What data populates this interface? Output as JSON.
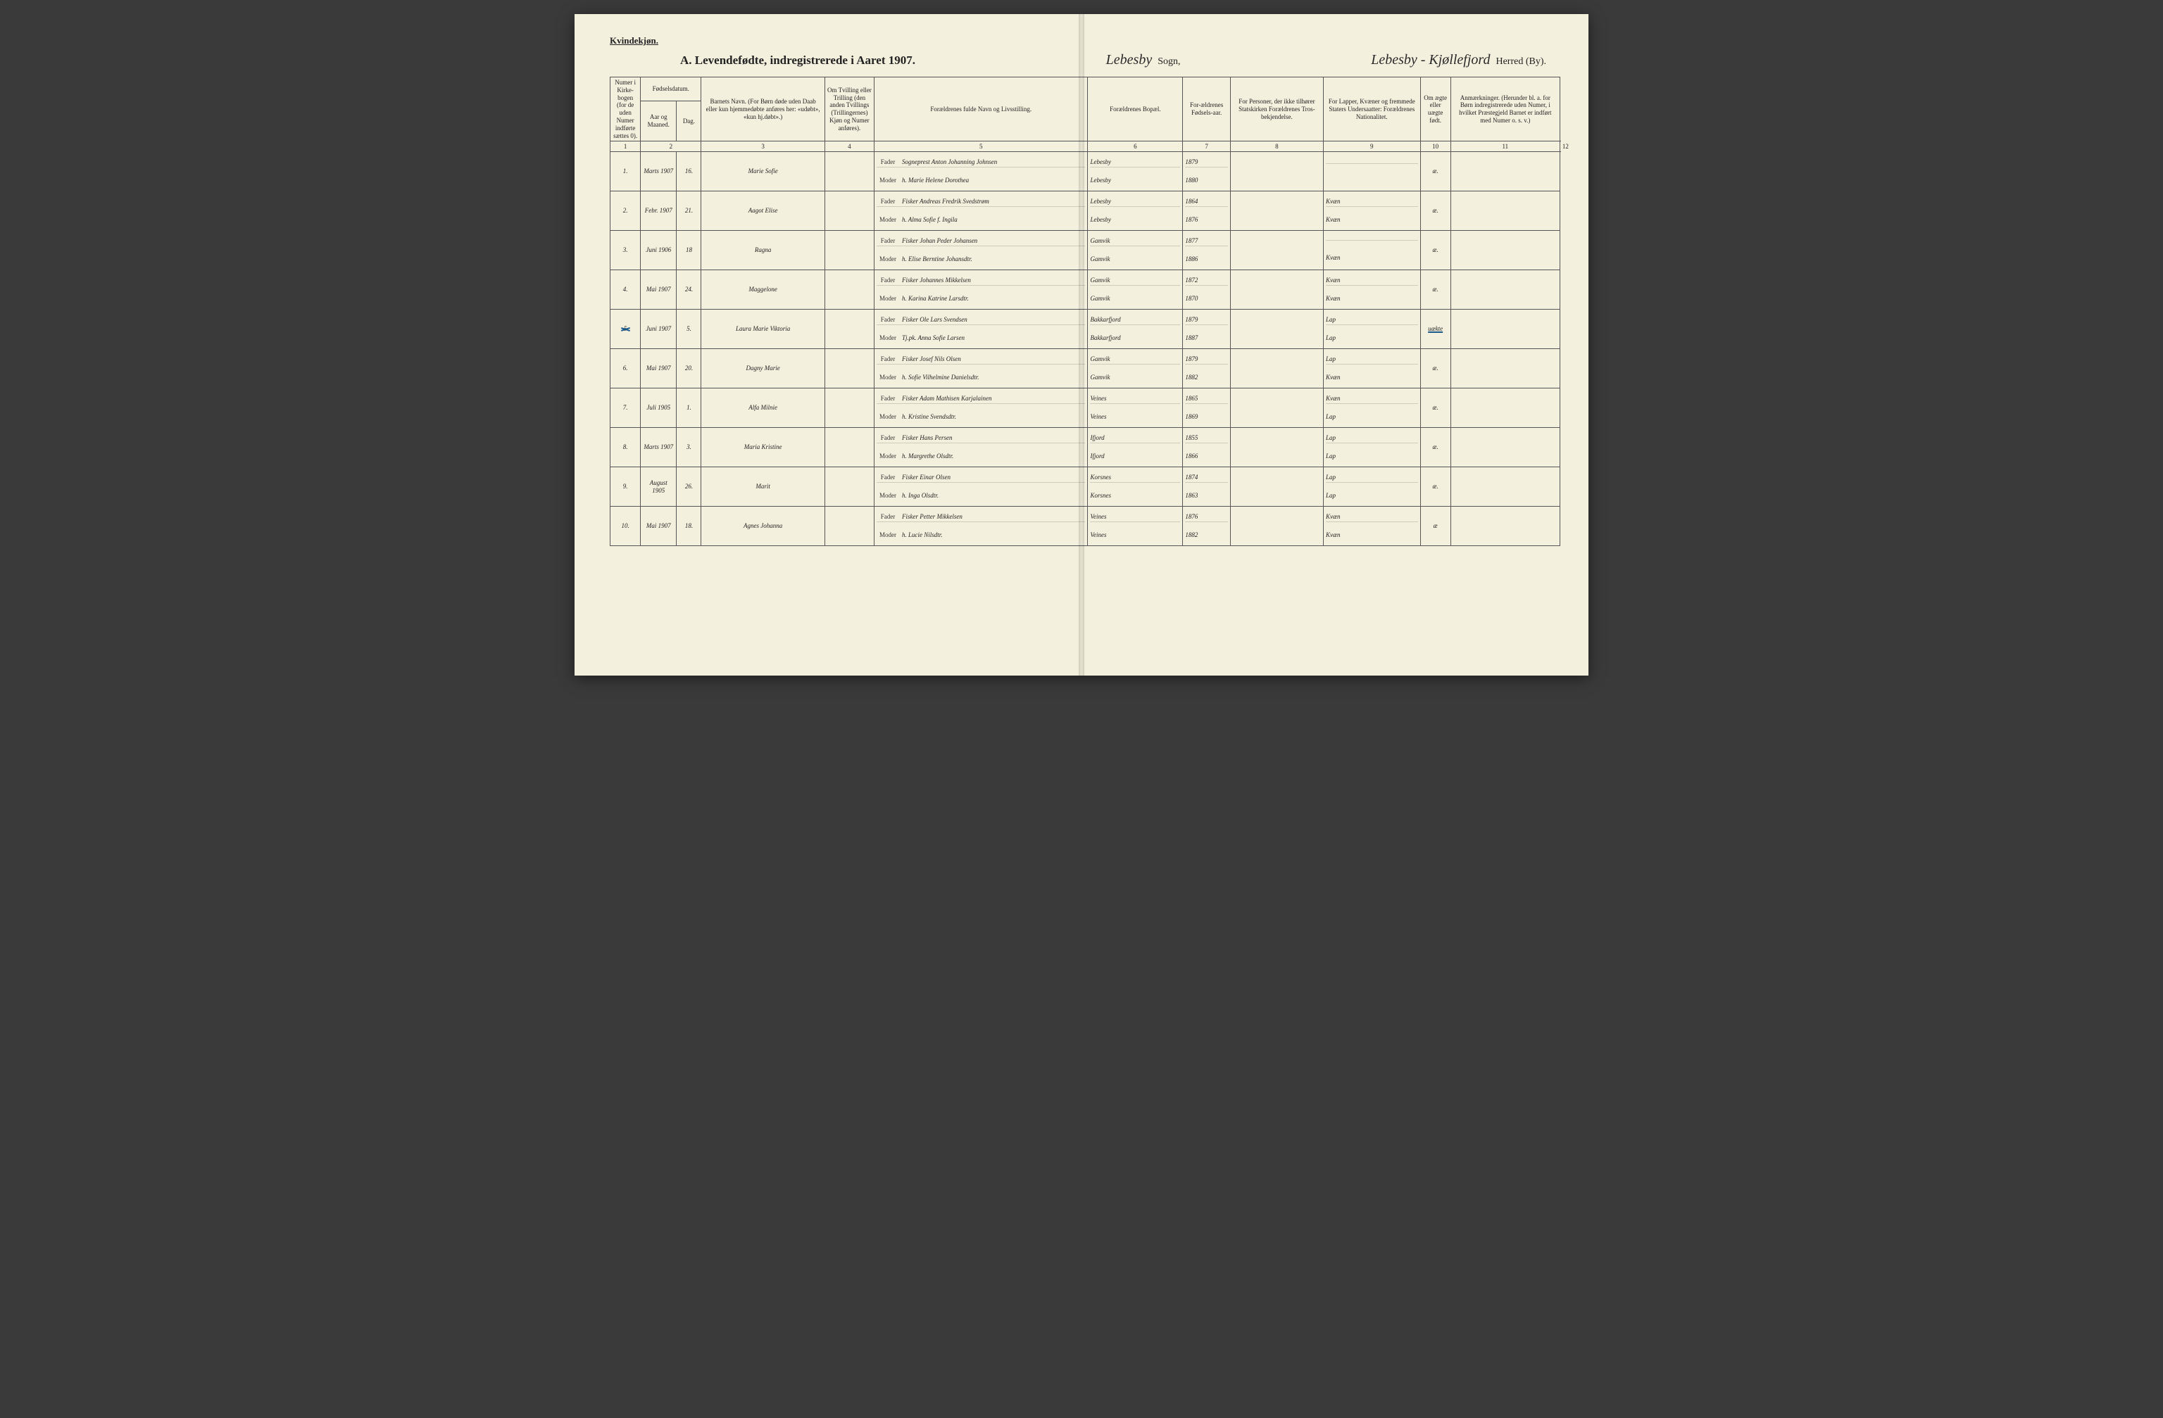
{
  "labels": {
    "gender": "Kvindekjøn.",
    "title": "A.  Levendefødte, indregistrerede i Aaret 1907.",
    "sogn_word": "Sogn,",
    "herred_word": "Herred (By).",
    "sogn_script": "Lebesby",
    "herred_script": "Lebesby - Kjøllefjord",
    "fader": "Fader",
    "moder": "Moder"
  },
  "headers": {
    "c1": "Numer i Kirke-bogen (for de uden Numer indførte sættes 0).",
    "c2_top": "Fødselsdatum.",
    "c2a": "Aar og Maaned.",
    "c2b": "Dag.",
    "c4": "Barnets Navn.\n(For Børn døde uden Daab eller kun hjemmedøbte anføres her: «udøbt», «kun hj.døbt».)",
    "c5": "Om Tvilling eller Trilling (den anden Tvillings (Trillingernes) Kjøn og Numer anføres).",
    "c6": "Forældrenes fulde Navn og Livsstilling.",
    "c7": "Forældrenes Bopæl.",
    "c8": "For-ældrenes Fødsels-aar.",
    "c9": "For Personer, der ikke tilhører Statskirken Forældrenes Tros-bekjendelse.",
    "c10": "For Lapper, Kvæner og fremmede Staters Undersaatter: Forældrenes Nationalitet.",
    "c11": "Om ægte eller uægte født.",
    "c12": "Anmærkninger.\n(Herunder bl. a. for Børn indregistrerede uden Numer, i hvilket Præstegjeld Barnet er indført med Numer o. s. v.)"
  },
  "colnums": [
    "1",
    "2",
    "3",
    "4",
    "5",
    "6",
    "7",
    "8",
    "9",
    "10",
    "11",
    "12"
  ],
  "rows": [
    {
      "n": "1.",
      "ym": "Marts 1907",
      "d": "16.",
      "name": "Marie Sofie",
      "fader": "Sogneprest Anton Johanning Johnsen",
      "moder": "h. Marie Helene Dorothea",
      "bopF": "Lebesby",
      "bopM": "Lebesby",
      "yF": "1879",
      "yM": "1880",
      "natF": "",
      "natM": "",
      "leg": "æ."
    },
    {
      "n": "2.",
      "ym": "Febr. 1907",
      "d": "21.",
      "name": "Aagot Elise",
      "fader": "Fisker Andreas Fredrik Svedstrøm",
      "moder": "h. Alma Sofie f. Ingila",
      "bopF": "Lebesby",
      "bopM": "Lebesby",
      "yF": "1864",
      "yM": "1876",
      "natF": "Kvæn",
      "natM": "Kvæn",
      "leg": "æ."
    },
    {
      "n": "3.",
      "ym": "Juni 1906",
      "d": "18",
      "name": "Ragna",
      "fader": "Fisker Johan Peder Johansen",
      "moder": "h. Elise Berntine Johansdtr.",
      "bopF": "Gamvik",
      "bopM": "Gamvik",
      "yF": "1877",
      "yM": "1886",
      "natF": "",
      "natM": "Kvæn",
      "leg": "æ."
    },
    {
      "n": "4.",
      "ym": "Mai 1907",
      "d": "24.",
      "name": "Maggelone",
      "fader": "Fisker Johannes Mikkelsen",
      "moder": "h. Karina Katrine Larsdtr.",
      "bopF": "Gamvik",
      "bopM": "Gamvik",
      "yF": "1872",
      "yM": "1870",
      "natF": "Kvæn",
      "natM": "Kvæn",
      "leg": "æ."
    },
    {
      "n": "5",
      "ym": "Juni 1907",
      "d": "5.",
      "name": "Laura Marie Viktoria",
      "fader": "Fisker Ole Lars Svendsen",
      "moder": "Tj.pk. Anna Sofie Larsen",
      "bopF": "Bakkarfjord",
      "bopM": "Bakkarfjord",
      "yF": "1879",
      "yM": "1887",
      "natF": "Lap",
      "natM": "Lap",
      "leg": "uækte",
      "struck": true
    },
    {
      "n": "6.",
      "ym": "Mai 1907",
      "d": "20.",
      "name": "Dagny Marie",
      "fader": "Fisker Josef Nils Olsen",
      "moder": "h. Sofie Vilhelmine Danielsdtr.",
      "bopF": "Gamvik",
      "bopM": "Gamvik",
      "yF": "1879",
      "yM": "1882",
      "natF": "Lap",
      "natM": "Kvæn",
      "leg": "æ."
    },
    {
      "n": "7.",
      "ym": "Juli 1905",
      "d": "1.",
      "name": "Alfa Milnie",
      "fader": "Fisker Adam Mathisen Karjalainen",
      "moder": "h. Kristine Svendsdtr.",
      "bopF": "Veines",
      "bopM": "Veines",
      "yF": "1865",
      "yM": "1869",
      "natF": "Kvæn",
      "natM": "Lap",
      "leg": "æ."
    },
    {
      "n": "8.",
      "ym": "Marts 1907",
      "d": "3.",
      "name": "Maria Kristine",
      "fader": "Fisker Hans Persen",
      "moder": "h. Margrethe Olsdtr.",
      "bopF": "Ifjord",
      "bopM": "Ifjord",
      "yF": "1855",
      "yM": "1866",
      "natF": "Lap",
      "natM": "Lap",
      "leg": "æ."
    },
    {
      "n": "9.",
      "ym": "August 1905",
      "d": "26.",
      "name": "Marit",
      "fader": "Fisker Einar Olsen",
      "moder": "h. Inga Olsdtr.",
      "bopF": "Korsnes",
      "bopM": "Korsnes",
      "yF": "1874",
      "yM": "1863",
      "natF": "Lap",
      "natM": "Lap",
      "leg": "æ."
    },
    {
      "n": "10.",
      "ym": "Mai 1907",
      "d": "18.",
      "name": "Agnes Johanna",
      "fader": "Fisker Petter Mikkelsen",
      "moder": "h. Lucie Nilsdtr.",
      "bopF": "Veines",
      "bopM": "Veines",
      "yF": "1876",
      "yM": "1882",
      "natF": "Kvæn",
      "natM": "Kvæn",
      "leg": "æ"
    }
  ],
  "widths_pct": [
    3.2,
    3.8,
    2.6,
    13.0,
    5.2,
    22.5,
    10.0,
    5.0,
    9.8,
    10.2,
    3.2,
    11.5
  ],
  "colors": {
    "paper": "#f4f0de",
    "ink": "#2a2a2a",
    "rule": "#555555",
    "blue": "#1a5a8a",
    "bg": "#3a3a3a"
  }
}
